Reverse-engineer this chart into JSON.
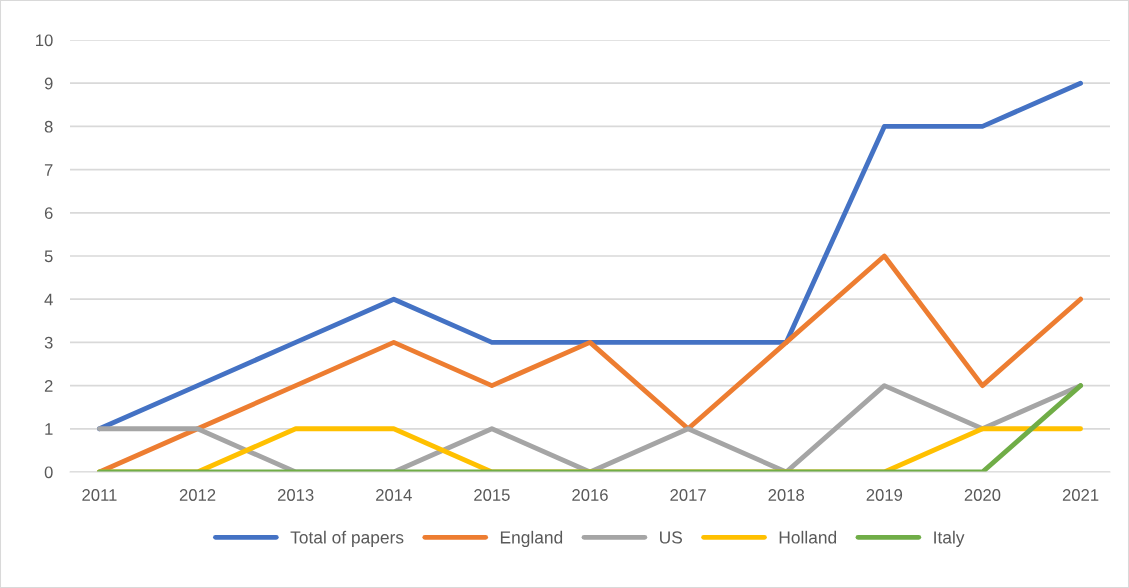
{
  "chart_data": {
    "type": "line",
    "categories": [
      "2011",
      "2012",
      "2013",
      "2014",
      "2015",
      "2016",
      "2017",
      "2018",
      "2019",
      "2020",
      "2021"
    ],
    "series": [
      {
        "name": "Total of papers",
        "color": "#4472c4",
        "values": [
          1,
          2,
          3,
          4,
          3,
          3,
          3,
          3,
          8,
          8,
          9
        ]
      },
      {
        "name": "England",
        "color": "#ed7d31",
        "values": [
          0,
          1,
          2,
          3,
          2,
          3,
          1,
          3,
          5,
          2,
          4
        ]
      },
      {
        "name": "US",
        "color": "#a5a5a5",
        "values": [
          1,
          1,
          0,
          0,
          1,
          0,
          1,
          0,
          2,
          1,
          2
        ]
      },
      {
        "name": "Holland",
        "color": "#ffc000",
        "values": [
          0,
          0,
          1,
          1,
          0,
          0,
          0,
          0,
          0,
          1,
          1
        ]
      },
      {
        "name": "Italy",
        "color": "#70ad47",
        "values": [
          0,
          0,
          0,
          0,
          0,
          0,
          0,
          0,
          0,
          0,
          2
        ]
      }
    ],
    "ylim": [
      0,
      10
    ],
    "yticks": [
      0,
      1,
      2,
      3,
      4,
      5,
      6,
      7,
      8,
      9,
      10
    ],
    "grid": "y",
    "legend": "bottom",
    "marker": "none",
    "line_style": "solid"
  }
}
